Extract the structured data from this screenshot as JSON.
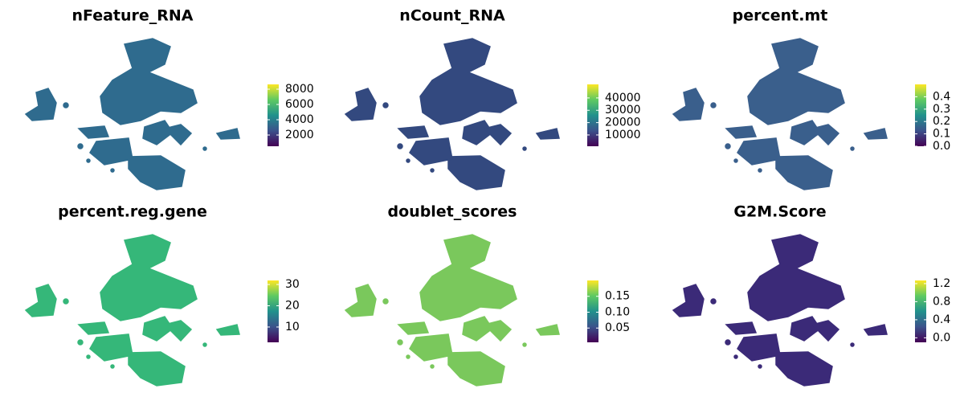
{
  "chart_data": [
    {
      "type": "umap",
      "title": "nFeature_RNA",
      "color": "#2f6b8e",
      "colormap": "viridis",
      "clim": [
        530,
        8630
      ],
      "cticks": [
        2000,
        4000,
        6000,
        8000
      ]
    },
    {
      "type": "umap",
      "title": "nCount_RNA",
      "color": "#33497f",
      "colormap": "viridis",
      "clim": [
        850,
        51000
      ],
      "cticks": [
        10000,
        20000,
        30000,
        40000
      ]
    },
    {
      "type": "umap",
      "title": "percent.mt",
      "color": "#3a5f8c",
      "colormap": "viridis",
      "clim": [
        0,
        0.5
      ],
      "cticks": [
        {
          "value": 0,
          "label": "0.0"
        },
        0.1,
        0.2,
        0.3,
        0.4
      ]
    },
    {
      "type": "umap",
      "title": "percent.reg.gene",
      "color": "#35b779",
      "colormap": "viridis",
      "clim": [
        2.8,
        31.9
      ],
      "cticks": [
        10,
        20,
        30
      ]
    },
    {
      "type": "umap",
      "title": "doublet_scores",
      "color": "#7ac85c",
      "colormap": "viridis",
      "clim": [
        0.005,
        0.2
      ],
      "cticks": [
        0.05,
        {
          "value": 0.1,
          "label": "0.10"
        },
        0.15
      ]
    },
    {
      "type": "umap",
      "title": "G2M.Score",
      "color": "#3b2a78",
      "colormap": "viridis",
      "clim": [
        -0.1,
        1.27
      ],
      "cticks": [
        {
          "value": 0,
          "label": "0.0"
        },
        0.4,
        0.8,
        1.2
      ]
    }
  ]
}
